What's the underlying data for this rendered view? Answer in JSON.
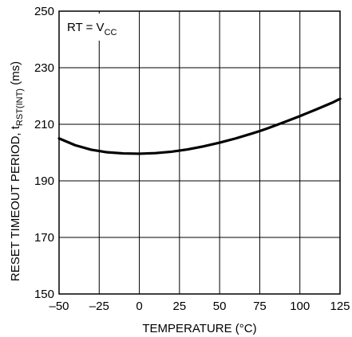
{
  "chart_data": {
    "type": "line",
    "title": "",
    "xlabel": "TEMPERATURE (°C)",
    "ylabel_main": "RESET TIMEOUT PERIOD, t",
    "ylabel_sub": "RST(INT)",
    "ylabel_unit": " (ms)",
    "xlim": [
      -50,
      125
    ],
    "ylim": [
      150,
      250
    ],
    "x_ticks": [
      "–50",
      "–25",
      "0",
      "25",
      "50",
      "75",
      "100",
      "125"
    ],
    "x_tick_values": [
      -50,
      -25,
      0,
      25,
      50,
      75,
      100,
      125
    ],
    "y_ticks": [
      "150",
      "170",
      "190",
      "210",
      "230",
      "250"
    ],
    "y_tick_values": [
      150,
      170,
      190,
      210,
      230,
      250
    ],
    "grid": true,
    "annotation": {
      "main": "RT = V",
      "sub": "CC"
    },
    "series": [
      {
        "x": [
          -50,
          -40,
          -30,
          -20,
          -10,
          0,
          10,
          20,
          30,
          40,
          50,
          60,
          70,
          75,
          80,
          90,
          100,
          110,
          120,
          125
        ],
        "y": [
          205,
          202.6,
          201.0,
          200.1,
          199.7,
          199.6,
          199.8,
          200.3,
          201.1,
          202.2,
          203.5,
          205.0,
          206.7,
          207.6,
          208.6,
          210.7,
          212.9,
          215.2,
          217.6,
          219.0
        ]
      }
    ],
    "line_color": "#000000"
  }
}
